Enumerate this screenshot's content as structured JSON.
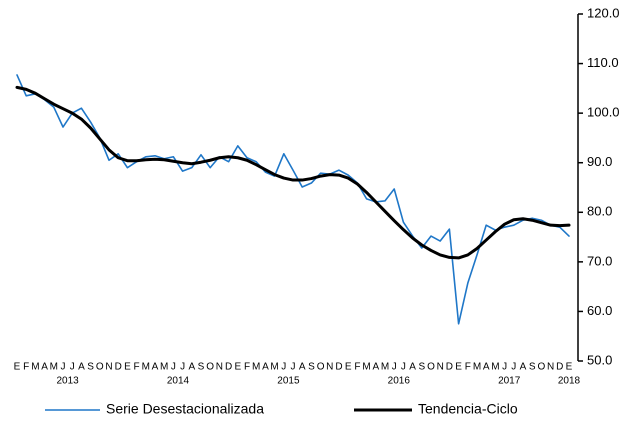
{
  "chart_data": {
    "type": "line",
    "categories": [
      "E",
      "F",
      "M",
      "A",
      "M",
      "J",
      "J",
      "A",
      "S",
      "O",
      "N",
      "D",
      "E",
      "F",
      "M",
      "A",
      "M",
      "J",
      "J",
      "A",
      "S",
      "O",
      "N",
      "D",
      "E",
      "F",
      "M",
      "A",
      "M",
      "J",
      "J",
      "A",
      "S",
      "O",
      "N",
      "D",
      "E",
      "F",
      "M",
      "A",
      "M",
      "J",
      "J",
      "A",
      "S",
      "O",
      "N",
      "D",
      "E",
      "F",
      "M",
      "A",
      "M",
      "J",
      "J",
      "A",
      "S",
      "O",
      "N",
      "D",
      "E"
    ],
    "year_labels": [
      "2013",
      "2014",
      "2015",
      "2016",
      "2017",
      "2018"
    ],
    "series": [
      {
        "name": "Serie Desestacionalizada",
        "color": "#1f77c8",
        "values": [
          107.7,
          103.5,
          103.9,
          102.7,
          101.2,
          97.2,
          100,
          101,
          98.2,
          95,
          90.5,
          91.8,
          89,
          90.2,
          91.2,
          91.4,
          90.8,
          91.2,
          88.3,
          89,
          91.6,
          89,
          91.2,
          90.2,
          93.4,
          91,
          90.2,
          88.1,
          87.3,
          91.8,
          88.5,
          85.1,
          85.9,
          87.9,
          87.7,
          88.5,
          87.5,
          85.9,
          82.7,
          82.1,
          82.3,
          84.7,
          78,
          75.2,
          72.8,
          75.2,
          74.2,
          76.6,
          57.5,
          65.7,
          71.4,
          77.4,
          76.4,
          77,
          77.4,
          78.4,
          78.8,
          78.4,
          77.4,
          77,
          75.2
        ]
      },
      {
        "name": "Tendencia-Ciclo",
        "color": "#000000",
        "values": [
          105.2,
          104.8,
          104,
          102.9,
          101.8,
          100.9,
          100,
          98.8,
          97,
          94.8,
          92.6,
          91,
          90.4,
          90.4,
          90.6,
          90.7,
          90.6,
          90.3,
          90,
          89.8,
          90.1,
          90.5,
          91,
          91.2,
          91,
          90.5,
          89.6,
          88.6,
          87.6,
          86.9,
          86.5,
          86.5,
          86.8,
          87.3,
          87.6,
          87.5,
          86.9,
          85.7,
          84,
          82.1,
          80.2,
          78.3,
          76.5,
          74.8,
          73.4,
          72.3,
          71.4,
          70.9,
          70.8,
          71.4,
          72.7,
          74.4,
          76.1,
          77.6,
          78.5,
          78.7,
          78.4,
          77.9,
          77.4,
          77.3,
          77.4
        ]
      }
    ],
    "ylim": [
      50,
      120
    ],
    "yticks": [
      {
        "value": 50,
        "label": "50.0"
      },
      {
        "value": 60,
        "label": "60.0"
      },
      {
        "value": 70,
        "label": "70.0"
      },
      {
        "value": 80,
        "label": "80.0"
      },
      {
        "value": 90,
        "label": "90.0"
      },
      {
        "value": 100,
        "label": "100.0"
      },
      {
        "value": 110,
        "label": "110.0"
      },
      {
        "value": 120,
        "label": "120.0"
      }
    ],
    "y_axis_side": "right",
    "grid": false
  }
}
